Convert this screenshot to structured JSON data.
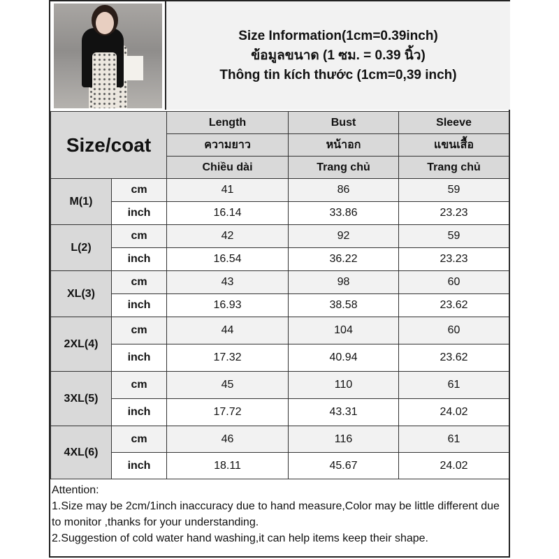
{
  "header": {
    "lines": [
      "Size Information(1cm=0.39inch)",
      "ข้อมูลขนาด (1 ซม. = 0.39 นิ้ว)",
      "Thông tin kích thước (1cm=0,39 inch)"
    ]
  },
  "table": {
    "corner_label": "Size/coat",
    "columns": [
      {
        "en": "Length",
        "th": "ความยาว",
        "vi": "Chiều dài"
      },
      {
        "en": "Bust",
        "th": "หน้าอก",
        "vi": "Trang chủ"
      },
      {
        "en": "Sleeve",
        "th": "แขนเสื้อ",
        "vi": "Trang chủ"
      }
    ],
    "rows": [
      {
        "size": "M(1)",
        "cm_label": "cm",
        "inch_label": "inch",
        "cm": [
          "41",
          "86",
          "59"
        ],
        "inch": [
          "16.14",
          "33.86",
          "23.23"
        ]
      },
      {
        "size": "L(2)",
        "cm_label": "cm",
        "inch_label": "inch",
        "cm": [
          "42",
          "92",
          "59"
        ],
        "inch": [
          "16.54",
          "36.22",
          "23.23"
        ]
      },
      {
        "size": "XL(3)",
        "cm_label": "cm",
        "inch_label": "inch",
        "cm": [
          "43",
          "98",
          "60"
        ],
        "inch": [
          "16.93",
          "38.58",
          "23.62"
        ]
      },
      {
        "size": "2XL(4)",
        "cm_label": "cm",
        "inch_label": "inch",
        "cm": [
          "44",
          "104",
          "60"
        ],
        "inch": [
          "17.32",
          "40.94",
          "23.62"
        ]
      },
      {
        "size": "3XL(5)",
        "cm_label": "cm",
        "inch_label": "inch",
        "cm": [
          "45",
          "110",
          "61"
        ],
        "inch": [
          "17.72",
          "43.31",
          "24.02"
        ]
      },
      {
        "size": "4XL(6)",
        "cm_label": "cm",
        "inch_label": "inch",
        "cm": [
          "46",
          "116",
          "61"
        ],
        "inch": [
          "18.11",
          "45.67",
          "24.02"
        ]
      }
    ]
  },
  "notes": {
    "title": "Attention:",
    "items": [
      "1.Size may be 2cm/1inch inaccuracy due to hand measure,Color may be little different due to monitor ,thanks for your understanding.",
      "2.Suggestion of cold water hand washing,it can help items keep their shape."
    ]
  }
}
